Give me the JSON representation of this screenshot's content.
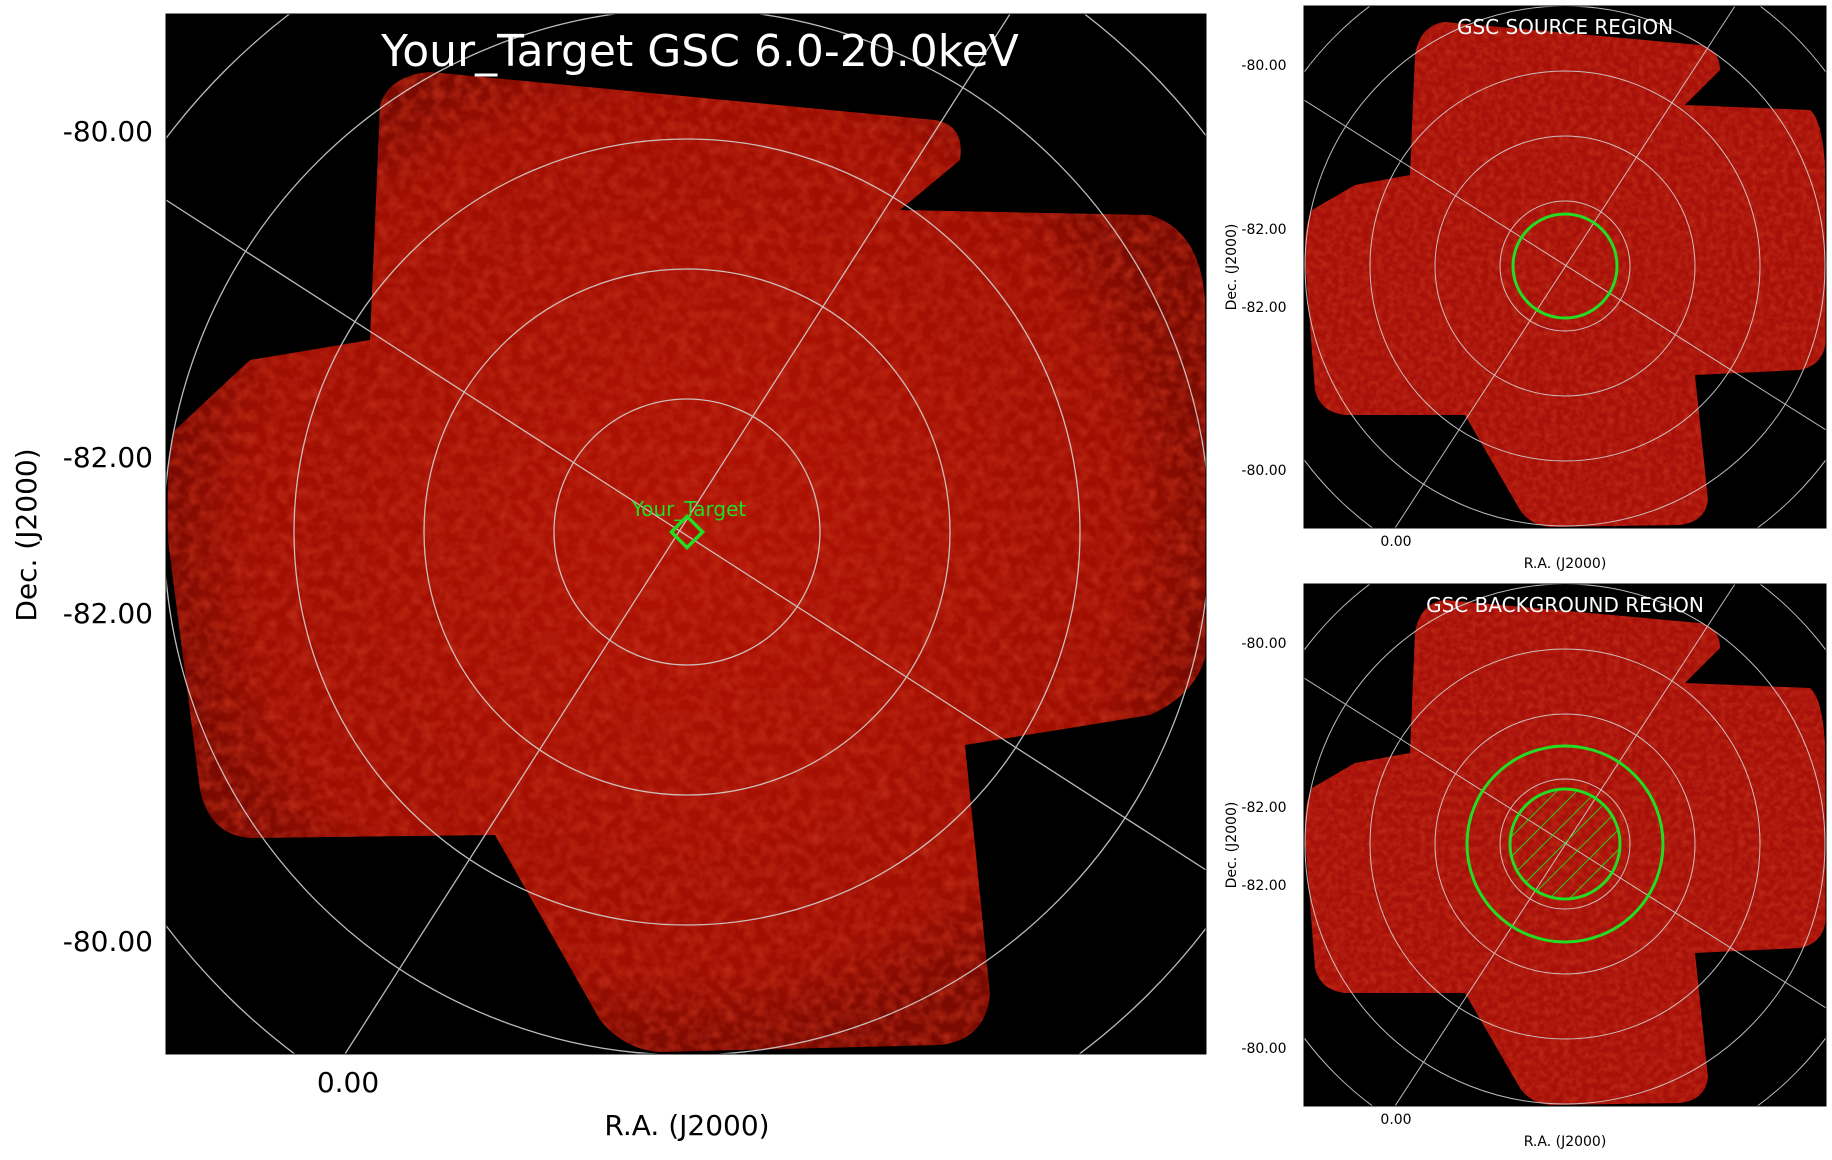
{
  "colors": {
    "map_red": "#b01204",
    "map_red_dark": "#6a0702",
    "map_red_bright": "#e83210",
    "grid": "#d0d0d0",
    "region_green": "#22dd22",
    "background": "#000000"
  },
  "main_panel": {
    "title": "Your_Target GSC 6.0-20.0keV",
    "target_label": "Your_Target",
    "dec_ticks": [
      "-80.00",
      "-82.00",
      "-82.00",
      "-80.00"
    ],
    "ra_tick": "0.00",
    "xlabel": "R.A. (J2000)",
    "ylabel": "Dec. (J2000)"
  },
  "source_panel": {
    "title": "GSC SOURCE REGION",
    "dec_ticks": [
      "-80.00",
      "-82.00",
      "-82.00",
      "-80.00"
    ],
    "ra_tick": "0.00",
    "xlabel": "R.A. (J2000)",
    "ylabel": "Dec. (J2000)"
  },
  "background_panel": {
    "title": "GSC BACKGROUND REGION",
    "dec_ticks": [
      "-80.00",
      "-82.00",
      "-82.00",
      "-80.00"
    ],
    "ra_tick": "0.00",
    "xlabel": "R.A. (J2000)",
    "ylabel": "Dec. (J2000)"
  }
}
